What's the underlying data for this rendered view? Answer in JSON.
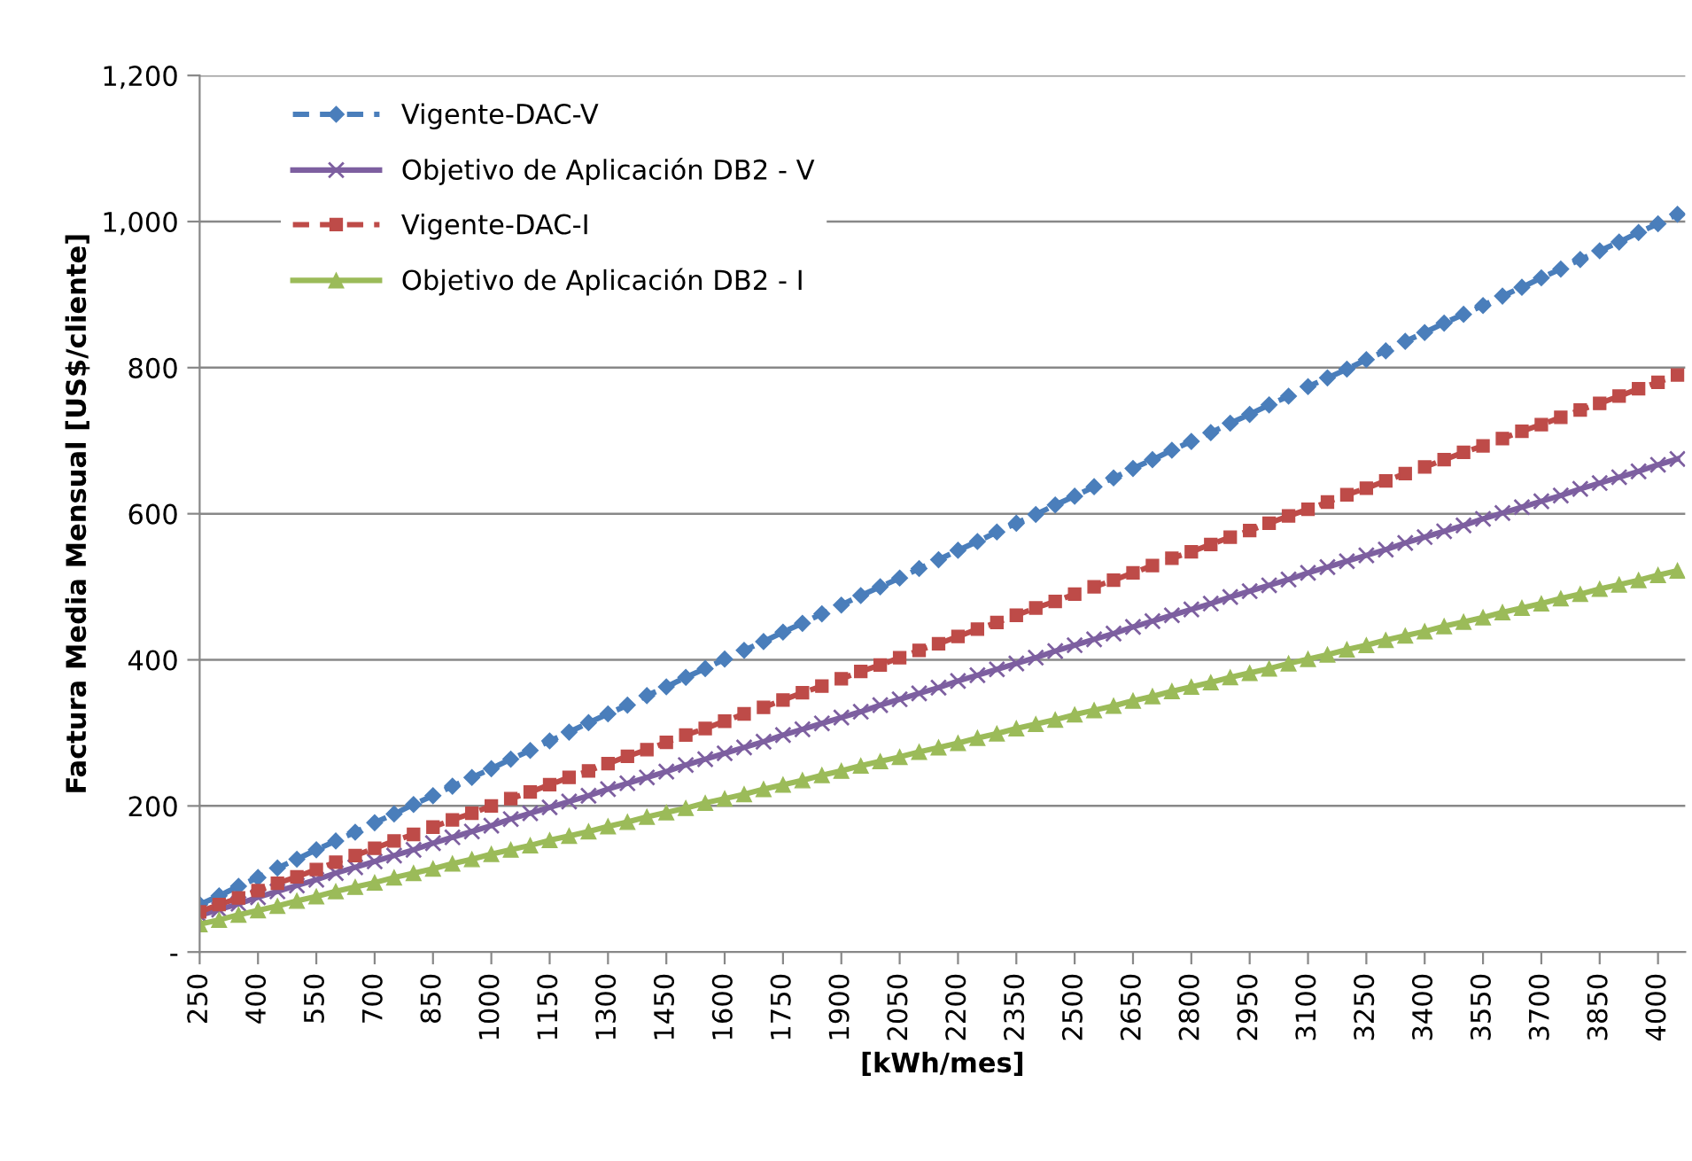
{
  "chart_data": {
    "type": "line",
    "xlabel": "[kWh/mes]",
    "ylabel": "Factura Media Mensual [US$/cliente]",
    "categories": [
      "250",
      null,
      null,
      "400",
      null,
      null,
      "550",
      null,
      null,
      "700",
      null,
      null,
      "850",
      null,
      null,
      "1000",
      null,
      null,
      "1150",
      null,
      null,
      "1300",
      null,
      null,
      "1450",
      null,
      null,
      "1600",
      null,
      null,
      "1750",
      null,
      null,
      "1900",
      null,
      null,
      "2050",
      null,
      null,
      "2200",
      null,
      null,
      "2350",
      null,
      null,
      "2500",
      null,
      null,
      "2650",
      null,
      null,
      "2800",
      null,
      null,
      "2950",
      null,
      null,
      "3100",
      null,
      null,
      "3250",
      null,
      null,
      "3400",
      null,
      null,
      "3550",
      null,
      null,
      "3700",
      null,
      null,
      "3850",
      null,
      null,
      "4000",
      null
    ],
    "series": [
      {
        "name": "Vigente-DAC-V",
        "color": "#4a7ebb",
        "marker": "diamond",
        "line_style": "dashed",
        "values": [
          65,
          77,
          90,
          102,
          115,
          127,
          140,
          152,
          164,
          177,
          189,
          202,
          214,
          227,
          239,
          251,
          264,
          276,
          289,
          301,
          314,
          326,
          338,
          351,
          363,
          376,
          388,
          401,
          413,
          425,
          438,
          450,
          463,
          475,
          488,
          500,
          512,
          525,
          537,
          550,
          562,
          575,
          587,
          599,
          612,
          624,
          637,
          649,
          662,
          674,
          687,
          699,
          711,
          724,
          736,
          749,
          761,
          774,
          786,
          798,
          811,
          823,
          836,
          848,
          861,
          873,
          885,
          898,
          910,
          923,
          935,
          948,
          960,
          972,
          985,
          997,
          1010
        ]
      },
      {
        "name": "Objetivo de Aplicación DB2 - V",
        "color": "#7d5fa0",
        "marker": "cross",
        "line_style": "solid",
        "values": [
          50,
          58,
          66,
          75,
          83,
          91,
          99,
          108,
          116,
          124,
          132,
          140,
          149,
          157,
          165,
          173,
          182,
          190,
          198,
          206,
          214,
          223,
          231,
          239,
          247,
          256,
          264,
          272,
          280,
          288,
          297,
          305,
          313,
          321,
          329,
          338,
          346,
          354,
          362,
          371,
          379,
          387,
          395,
          403,
          412,
          420,
          428,
          436,
          445,
          453,
          461,
          469,
          477,
          486,
          494,
          502,
          510,
          519,
          527,
          535,
          543,
          551,
          560,
          568,
          576,
          584,
          593,
          601,
          609,
          617,
          625,
          634,
          642,
          650,
          658,
          667,
          675
        ]
      },
      {
        "name": "Vigente-DAC-I",
        "color": "#be4b48",
        "marker": "square",
        "line_style": "dashed",
        "values": [
          55,
          65,
          74,
          84,
          94,
          103,
          113,
          123,
          132,
          142,
          152,
          161,
          171,
          181,
          190,
          200,
          210,
          219,
          229,
          239,
          248,
          258,
          268,
          277,
          287,
          297,
          306,
          316,
          326,
          335,
          345,
          355,
          364,
          374,
          384,
          393,
          403,
          413,
          422,
          432,
          442,
          451,
          461,
          471,
          480,
          490,
          500,
          509,
          519,
          529,
          539,
          548,
          558,
          568,
          577,
          587,
          597,
          606,
          616,
          626,
          635,
          645,
          655,
          664,
          674,
          684,
          693,
          703,
          713,
          722,
          732,
          742,
          751,
          761,
          771,
          780,
          790
        ]
      },
      {
        "name": "Objetivo de Aplicación DB2 - I",
        "color": "#9bbb59",
        "marker": "triangle",
        "line_style": "solid",
        "values": [
          38,
          44,
          51,
          57,
          63,
          70,
          76,
          83,
          89,
          95,
          102,
          108,
          114,
          121,
          127,
          134,
          140,
          146,
          153,
          159,
          165,
          172,
          178,
          185,
          191,
          197,
          204,
          210,
          216,
          223,
          229,
          235,
          242,
          248,
          255,
          261,
          267,
          274,
          280,
          286,
          293,
          299,
          306,
          312,
          318,
          325,
          331,
          337,
          344,
          350,
          357,
          363,
          369,
          376,
          382,
          388,
          395,
          401,
          407,
          414,
          420,
          427,
          433,
          439,
          446,
          452,
          458,
          465,
          471,
          477,
          484,
          490,
          497,
          503,
          509,
          516,
          522
        ]
      }
    ],
    "ylim": [
      0,
      1200
    ],
    "yticks": [
      {
        "value": 0,
        "label": "-"
      },
      200,
      400,
      600,
      800,
      {
        "value": 1000,
        "label": "1,000"
      },
      {
        "value": 1200,
        "label": "1,200"
      }
    ],
    "grid": "y",
    "legend": "top left"
  }
}
